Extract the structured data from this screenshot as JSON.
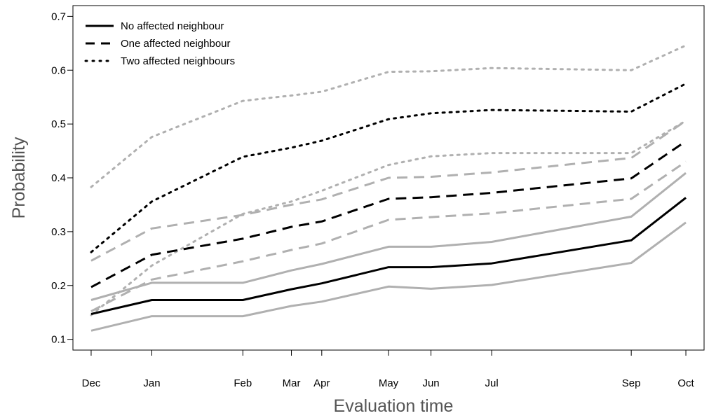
{
  "chart_data": {
    "type": "line",
    "xlabel": "Evaluation time",
    "ylabel": "Probability",
    "categories": [
      "Dec",
      "Jan",
      "Feb",
      "Mar",
      "Apr",
      "May",
      "Jun",
      "Jul",
      "Sep",
      "Oct"
    ],
    "x_positions": [
      0,
      1,
      2.5,
      3.3,
      3.8,
      4.9,
      5.6,
      6.6,
      8.9,
      9.8
    ],
    "xlim": [
      -0.3,
      10.1
    ],
    "ylim": [
      0.08,
      0.72
    ],
    "yticks": [
      "0.1",
      "0.2",
      "0.3",
      "0.4",
      "0.5",
      "0.6",
      "0.7"
    ],
    "ytick_values": [
      0.1,
      0.2,
      0.3,
      0.4,
      0.5,
      0.6,
      0.7
    ],
    "grid": false,
    "legend_position": "top-left",
    "legend": [
      {
        "label": "No affected neighbour",
        "style": "solid"
      },
      {
        "label": "One affected neighbour",
        "style": "dashed"
      },
      {
        "label": "Two affected neighbours",
        "style": "dotted"
      }
    ],
    "series": [
      {
        "name": "No affected neighbour",
        "role": "estimate",
        "style": "solid",
        "color": "#000000",
        "values": [
          0.147,
          0.173,
          0.173,
          0.193,
          0.204,
          0.234,
          0.234,
          0.241,
          0.284,
          0.363
        ]
      },
      {
        "role": "lower bound",
        "style": "solid",
        "color": "#b0b0b0",
        "values": [
          0.116,
          0.143,
          0.143,
          0.162,
          0.17,
          0.198,
          0.194,
          0.201,
          0.242,
          0.317
        ]
      },
      {
        "role": "upper bound",
        "style": "solid",
        "color": "#b0b0b0",
        "values": [
          0.173,
          0.205,
          0.205,
          0.228,
          0.24,
          0.272,
          0.272,
          0.281,
          0.328,
          0.409
        ]
      },
      {
        "name": "One affected neighbour",
        "role": "estimate",
        "style": "dashed",
        "color": "#000000",
        "values": [
          0.197,
          0.257,
          0.287,
          0.309,
          0.319,
          0.361,
          0.364,
          0.372,
          0.399,
          0.468
        ]
      },
      {
        "role": "lower bound",
        "style": "dashed",
        "color": "#b0b0b0",
        "values": [
          0.152,
          0.211,
          0.245,
          0.266,
          0.278,
          0.322,
          0.327,
          0.334,
          0.361,
          0.43
        ]
      },
      {
        "role": "upper bound",
        "style": "dashed",
        "color": "#b0b0b0",
        "values": [
          0.246,
          0.306,
          0.331,
          0.35,
          0.36,
          0.4,
          0.402,
          0.41,
          0.437,
          0.506
        ]
      },
      {
        "name": "Two affected neighbours",
        "role": "estimate",
        "style": "dotted",
        "color": "#000000",
        "values": [
          0.262,
          0.356,
          0.439,
          0.456,
          0.469,
          0.509,
          0.52,
          0.526,
          0.523,
          0.575
        ]
      },
      {
        "role": "lower bound",
        "style": "dotted",
        "color": "#b0b0b0",
        "values": [
          0.145,
          0.237,
          0.333,
          0.356,
          0.376,
          0.424,
          0.44,
          0.446,
          0.446,
          0.506
        ]
      },
      {
        "role": "upper bound",
        "style": "dotted",
        "color": "#b0b0b0",
        "values": [
          0.383,
          0.476,
          0.543,
          0.553,
          0.56,
          0.597,
          0.598,
          0.604,
          0.6,
          0.646
        ]
      }
    ]
  }
}
